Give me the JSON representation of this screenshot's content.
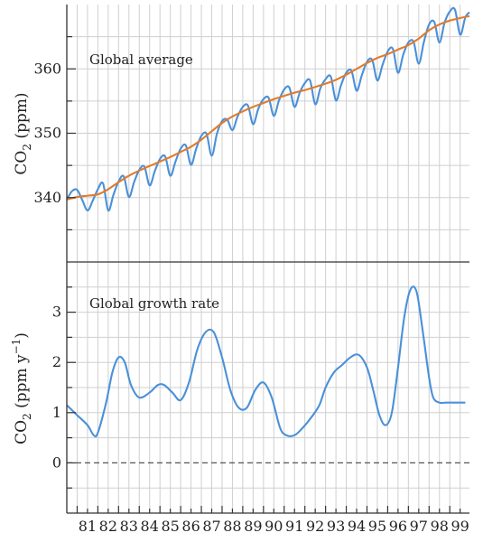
{
  "figure": {
    "top_ylabel": "CO",
    "top_ylabel_sub": "2",
    "top_ylabel_unit": " (ppm)",
    "bottom_ylabel": "CO",
    "bottom_ylabel_sub": "2",
    "bottom_ylabel_unit": " (ppm y",
    "bottom_ylabel_sup": "−1",
    "bottom_ylabel_close": ")",
    "top_annotation": "Global average",
    "bottom_annotation": "Global growth rate"
  },
  "colors": {
    "seasonal_line": "#4a90d9",
    "trend_line": "#e07b2e",
    "zero_line": "#555555"
  },
  "chart_data": [
    {
      "type": "line",
      "title": "",
      "annotation": "Global average",
      "ylabel": "CO2 (ppm)",
      "xlabel": "",
      "ylim": [
        330,
        370
      ],
      "xlim": [
        1980.5,
        1999.95
      ],
      "yticks": [
        340,
        350,
        360
      ],
      "grid": true,
      "series": [
        {
          "name": "",
          "style": "seasonal",
          "x": [
            1980.5,
            1980.75,
            1981.0,
            1981.25,
            1981.5,
            1981.75,
            1982.0,
            1982.25,
            1982.5,
            1982.75,
            1983.0,
            1983.25,
            1983.5,
            1983.75,
            1984.0,
            1984.25,
            1984.5,
            1984.75,
            1985.0,
            1985.25,
            1985.5,
            1985.75,
            1986.0,
            1986.25,
            1986.5,
            1986.75,
            1987.0,
            1987.25,
            1987.5,
            1987.75,
            1988.0,
            1988.25,
            1988.5,
            1988.75,
            1989.0,
            1989.25,
            1989.5,
            1989.75,
            1990.0,
            1990.25,
            1990.5,
            1990.75,
            1991.0,
            1991.25,
            1991.5,
            1991.75,
            1992.0,
            1992.25,
            1992.5,
            1992.75,
            1993.0,
            1993.25,
            1993.5,
            1993.75,
            1994.0,
            1994.25,
            1994.5,
            1994.75,
            1995.0,
            1995.25,
            1995.5,
            1995.75,
            1996.0,
            1996.25,
            1996.5,
            1996.75,
            1997.0,
            1997.25,
            1997.5,
            1997.75,
            1998.0,
            1998.25,
            1998.5,
            1998.75,
            1999.0,
            1999.25,
            1999.5,
            1999.75,
            1999.95
          ],
          "y": [
            339.7,
            341.0,
            341.2,
            339.6,
            338.0,
            339.5,
            341.3,
            342.2,
            338.0,
            340.4,
            342.5,
            343.3,
            340.1,
            342.4,
            344.3,
            344.8,
            341.9,
            344.1,
            346.0,
            346.4,
            343.4,
            345.6,
            347.6,
            348.1,
            345.1,
            347.6,
            349.6,
            349.9,
            346.5,
            349.9,
            351.9,
            352.1,
            350.5,
            352.6,
            354.1,
            354.3,
            351.4,
            353.8,
            355.3,
            355.5,
            352.7,
            355.1,
            356.8,
            357.1,
            354.1,
            356.3,
            357.8,
            358.2,
            354.5,
            357.0,
            358.4,
            358.8,
            355.1,
            357.5,
            359.4,
            359.7,
            356.6,
            359.0,
            361.1,
            361.4,
            358.2,
            360.6,
            362.7,
            363.1,
            359.4,
            362.2,
            364.1,
            364.2,
            360.8,
            364.2,
            366.9,
            367.3,
            364.1,
            367.2,
            368.9,
            369.2,
            365.3,
            368.0,
            368.8
          ]
        },
        {
          "name": "",
          "style": "trend",
          "x": [
            1980.5,
            1981.0,
            1981.5,
            1982.0,
            1982.5,
            1983.0,
            1983.5,
            1984.0,
            1984.5,
            1985.0,
            1985.5,
            1986.0,
            1986.5,
            1987.0,
            1987.5,
            1988.0,
            1988.5,
            1989.0,
            1989.5,
            1990.0,
            1990.5,
            1991.0,
            1991.5,
            1992.0,
            1992.5,
            1993.0,
            1993.5,
            1994.0,
            1994.5,
            1995.0,
            1995.5,
            1996.0,
            1996.5,
            1997.0,
            1997.5,
            1998.0,
            1998.5,
            1999.0,
            1999.5,
            1999.95
          ],
          "y": [
            339.7,
            340.1,
            340.3,
            340.5,
            341.3,
            342.4,
            343.4,
            344.2,
            344.9,
            345.6,
            346.3,
            347.1,
            347.9,
            349.0,
            350.3,
            351.6,
            352.6,
            353.4,
            354.1,
            354.7,
            355.3,
            355.8,
            356.3,
            356.7,
            357.2,
            357.7,
            358.3,
            359.1,
            360.0,
            360.9,
            361.7,
            362.3,
            363.0,
            363.7,
            364.7,
            366.0,
            366.9,
            367.5,
            367.9,
            368.2
          ]
        }
      ]
    },
    {
      "type": "line",
      "title": "",
      "annotation": "Global growth rate",
      "ylabel": "CO2 (ppm y−1)",
      "xlabel": "",
      "ylim": [
        -1,
        4
      ],
      "xlim": [
        1980.5,
        1999.95
      ],
      "yticks": [
        0,
        1,
        2,
        3
      ],
      "xticklabels": [
        "81",
        "82",
        "83",
        "84",
        "85",
        "86",
        "87",
        "88",
        "89",
        "90",
        "91",
        "92",
        "93",
        "94",
        "95",
        "96",
        "97",
        "98",
        "99"
      ],
      "grid": true,
      "reference_line": {
        "y": 0,
        "style": "dashed"
      },
      "series": [
        {
          "name": "",
          "x": [
            1980.5,
            1981.0,
            1981.5,
            1981.8,
            1982.0,
            1982.4,
            1982.7,
            1983.0,
            1983.3,
            1983.6,
            1984.0,
            1984.5,
            1984.9,
            1985.2,
            1985.6,
            1986.0,
            1986.4,
            1986.8,
            1987.2,
            1987.6,
            1988.0,
            1988.4,
            1988.8,
            1989.2,
            1989.6,
            1990.0,
            1990.4,
            1990.8,
            1991.1,
            1991.5,
            1991.9,
            1992.3,
            1992.7,
            1993.0,
            1993.4,
            1993.8,
            1994.2,
            1994.6,
            1995.0,
            1995.3,
            1995.6,
            1995.9,
            1996.2,
            1996.5,
            1996.8,
            1997.1,
            1997.4,
            1997.7,
            1998.0,
            1998.2,
            1998.5,
            1998.8,
            1999.1,
            1999.5,
            1999.75
          ],
          "y": [
            1.15,
            0.95,
            0.75,
            0.55,
            0.6,
            1.2,
            1.8,
            2.1,
            2.0,
            1.55,
            1.3,
            1.4,
            1.55,
            1.55,
            1.4,
            1.25,
            1.6,
            2.25,
            2.6,
            2.6,
            2.1,
            1.45,
            1.1,
            1.1,
            1.45,
            1.6,
            1.3,
            0.7,
            0.55,
            0.55,
            0.7,
            0.9,
            1.15,
            1.5,
            1.8,
            1.95,
            2.1,
            2.15,
            1.9,
            1.45,
            0.95,
            0.75,
            1.0,
            1.9,
            2.9,
            3.45,
            3.4,
            2.6,
            1.7,
            1.3,
            1.2,
            1.2,
            1.2,
            1.2,
            1.2
          ]
        }
      ]
    }
  ]
}
